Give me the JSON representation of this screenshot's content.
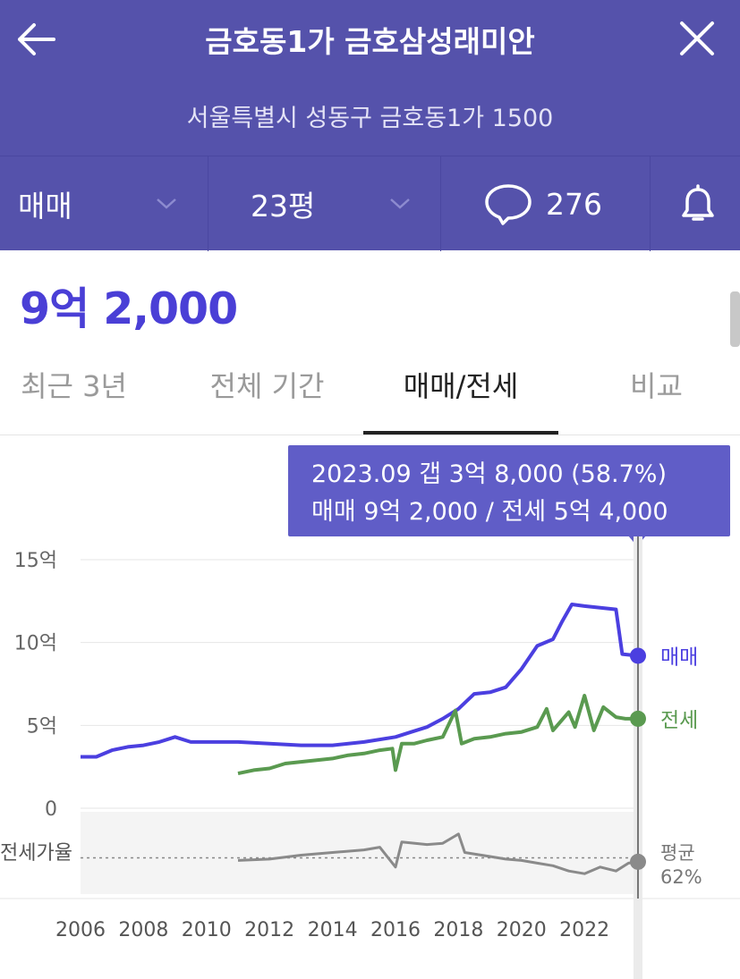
{
  "header": {
    "title": "금호동1가 금호삼성래미안",
    "address": "서울특별시 성동구 금호동1가 1500",
    "trade_type": "매매",
    "area": "23평",
    "comment_count": "276",
    "color": "#5552ab"
  },
  "icons": {
    "back": "arrow-left-icon",
    "close": "close-icon",
    "comment": "speech-bubble-icon",
    "alert": "bell-icon"
  },
  "price": {
    "current": "9억 2,000",
    "color": "#4a3fd6"
  },
  "tabs": [
    {
      "label": "최근 3년"
    },
    {
      "label": "전체 기간"
    },
    {
      "label": "매매/전세"
    },
    {
      "label": "비교"
    }
  ],
  "active_tab": "매매/전세",
  "tooltip": {
    "line1": "2023.09  갭 3억 8,000 (58.7%)",
    "line2": "매매 9억 2,000 / 전세 5억 4,000"
  },
  "chart_data": {
    "type": "line",
    "x_ticks": [
      "2006",
      "2008",
      "2010",
      "2012",
      "2014",
      "2016",
      "2018",
      "2020",
      "2022"
    ],
    "y_ticks": [
      "0",
      "5억",
      "10억",
      "15억"
    ],
    "ylim": [
      0,
      15
    ],
    "series": [
      {
        "name": "매매",
        "unit": "억",
        "color": "#4b3fe0",
        "points": [
          [
            2006.0,
            3.1
          ],
          [
            2006.5,
            3.1
          ],
          [
            2007.0,
            3.5
          ],
          [
            2007.5,
            3.7
          ],
          [
            2008.0,
            3.8
          ],
          [
            2008.5,
            4.0
          ],
          [
            2009.0,
            4.3
          ],
          [
            2009.5,
            4.0
          ],
          [
            2010.0,
            4.0
          ],
          [
            2011.0,
            4.0
          ],
          [
            2012.0,
            3.9
          ],
          [
            2013.0,
            3.8
          ],
          [
            2014.0,
            3.8
          ],
          [
            2015.0,
            4.0
          ],
          [
            2016.0,
            4.3
          ],
          [
            2016.5,
            4.6
          ],
          [
            2017.0,
            4.9
          ],
          [
            2017.5,
            5.4
          ],
          [
            2018.0,
            6.0
          ],
          [
            2018.5,
            6.9
          ],
          [
            2019.0,
            7.0
          ],
          [
            2019.5,
            7.3
          ],
          [
            2020.0,
            8.4
          ],
          [
            2020.5,
            9.8
          ],
          [
            2021.0,
            10.2
          ],
          [
            2021.3,
            11.3
          ],
          [
            2021.6,
            12.3
          ],
          [
            2022.0,
            12.2
          ],
          [
            2022.5,
            12.1
          ],
          [
            2023.0,
            12.0
          ],
          [
            2023.2,
            9.3
          ],
          [
            2023.7,
            9.2
          ]
        ]
      },
      {
        "name": "전세",
        "unit": "억",
        "color": "#5a9a50",
        "points": [
          [
            2011.0,
            2.1
          ],
          [
            2011.5,
            2.3
          ],
          [
            2012.0,
            2.4
          ],
          [
            2012.5,
            2.7
          ],
          [
            2013.0,
            2.8
          ],
          [
            2013.5,
            2.9
          ],
          [
            2014.0,
            3.0
          ],
          [
            2014.5,
            3.2
          ],
          [
            2015.0,
            3.3
          ],
          [
            2015.5,
            3.5
          ],
          [
            2015.9,
            3.6
          ],
          [
            2016.0,
            2.3
          ],
          [
            2016.2,
            3.9
          ],
          [
            2016.6,
            3.9
          ],
          [
            2017.0,
            4.1
          ],
          [
            2017.5,
            4.3
          ],
          [
            2017.9,
            5.9
          ],
          [
            2018.1,
            3.9
          ],
          [
            2018.5,
            4.2
          ],
          [
            2019.0,
            4.3
          ],
          [
            2019.5,
            4.5
          ],
          [
            2020.0,
            4.6
          ],
          [
            2020.5,
            4.9
          ],
          [
            2020.8,
            6.0
          ],
          [
            2021.0,
            4.7
          ],
          [
            2021.5,
            5.8
          ],
          [
            2021.7,
            4.9
          ],
          [
            2022.0,
            6.8
          ],
          [
            2022.3,
            4.7
          ],
          [
            2022.6,
            6.1
          ],
          [
            2023.0,
            5.5
          ],
          [
            2023.3,
            5.4
          ],
          [
            2023.7,
            5.4
          ]
        ]
      }
    ],
    "ratio": {
      "label": "전세가율",
      "avg_label": "평균",
      "avg_value": "62%",
      "points": [
        [
          2011.0,
          60
        ],
        [
          2012.0,
          61
        ],
        [
          2013.0,
          64
        ],
        [
          2014.0,
          66
        ],
        [
          2015.0,
          68
        ],
        [
          2015.5,
          70
        ],
        [
          2016.0,
          55
        ],
        [
          2016.2,
          74
        ],
        [
          2017.0,
          72
        ],
        [
          2017.5,
          73
        ],
        [
          2018.0,
          80
        ],
        [
          2018.2,
          66
        ],
        [
          2019.0,
          63
        ],
        [
          2019.5,
          61
        ],
        [
          2020.0,
          60
        ],
        [
          2020.5,
          58
        ],
        [
          2021.0,
          56
        ],
        [
          2021.5,
          52
        ],
        [
          2022.0,
          50
        ],
        [
          2022.5,
          55
        ],
        [
          2023.0,
          52
        ],
        [
          2023.4,
          58
        ],
        [
          2023.7,
          59
        ]
      ]
    },
    "current_labels": {
      "sale": "매매",
      "jeonse": "전세"
    }
  }
}
